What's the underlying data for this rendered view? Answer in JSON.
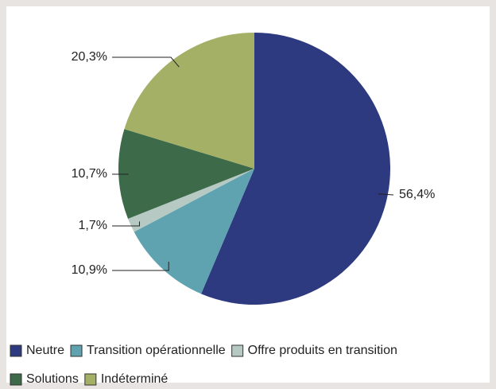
{
  "chart_data": {
    "type": "pie",
    "categories": [
      "Neutre",
      "Transition opérationnelle",
      "Offre produits en transition",
      "Solutions",
      "Indéterminé"
    ],
    "values": [
      56.4,
      10.9,
      1.7,
      10.7,
      20.3
    ],
    "value_labels": [
      "56,4%",
      "10,9%",
      "1,7%",
      "10,7%",
      "20,3%"
    ],
    "colors": [
      "#2e3a80",
      "#5fa3b0",
      "#b6c9c3",
      "#3d6b4a",
      "#a4b065"
    ],
    "legend": "bottom"
  }
}
